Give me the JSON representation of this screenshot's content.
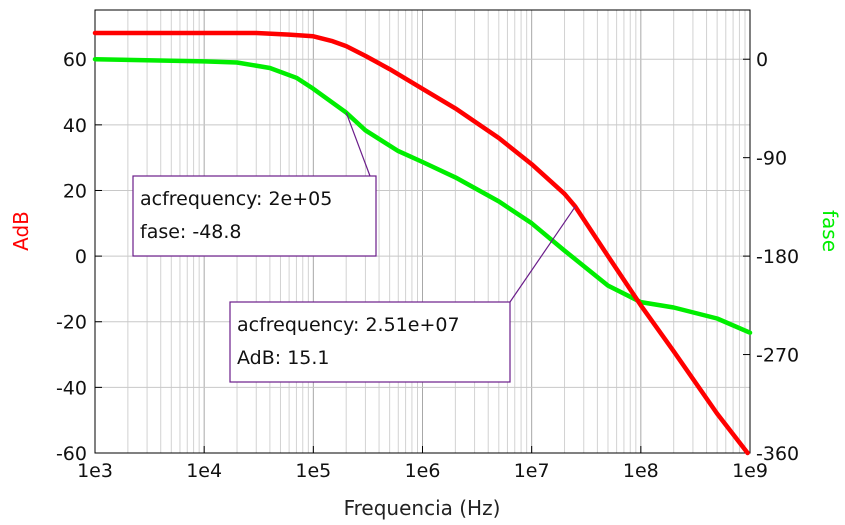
{
  "chart_data": {
    "type": "line",
    "title": "",
    "xlabel": "Frequencia (Hz)",
    "xscale": "log",
    "xlim": [
      1000,
      1000000000
    ],
    "x_ticks": [
      1000,
      10000,
      100000,
      1000000,
      10000000,
      100000000,
      1000000000
    ],
    "x_tick_labels": [
      "1e3",
      "1e4",
      "1e5",
      "1e6",
      "1e7",
      "1e8",
      "1e9"
    ],
    "y_left": {
      "label": "AdB",
      "color": "#ff0000",
      "lim": [
        -60,
        75
      ],
      "ticks": [
        -60,
        -40,
        -20,
        0,
        20,
        40,
        60
      ],
      "tick_labels": [
        "-60",
        "-40",
        "-20",
        "0",
        "20",
        "40",
        "60"
      ]
    },
    "y_right": {
      "label": "fase",
      "color": "#00ee00",
      "lim": [
        -360,
        45
      ],
      "ticks": [
        -360,
        -270,
        -180,
        -90,
        0
      ],
      "tick_labels": [
        "-360",
        "-270",
        "-180",
        "-90",
        "0"
      ]
    },
    "grid": true,
    "series": [
      {
        "name": "AdB",
        "axis": "left",
        "color": "#ff0000",
        "x": [
          1000,
          10000,
          30000,
          60000,
          100000,
          150000,
          200000,
          300000,
          500000,
          1000000,
          2000000,
          5000000,
          10000000,
          20000000,
          25100000,
          50000000,
          100000000,
          200000000,
          500000000,
          950000000
        ],
        "y": [
          68,
          68,
          68,
          67.5,
          67,
          65.5,
          64,
          61,
          57,
          51,
          45,
          36,
          28,
          19,
          15.1,
          0,
          -15,
          -29,
          -48,
          -60
        ]
      },
      {
        "name": "fase",
        "axis": "right",
        "color": "#00ee00",
        "x": [
          1000,
          10000,
          20000,
          40000,
          70000,
          100000,
          200000,
          300000,
          600000,
          1000000,
          2000000,
          5000000,
          10000000,
          20000000,
          50000000,
          100000000,
          200000000,
          500000000,
          1000000000
        ],
        "y": [
          0,
          -2,
          -3,
          -8,
          -17,
          -27,
          -48.8,
          -65,
          -84,
          -94,
          -108,
          -130,
          -150,
          -175,
          -207,
          -222,
          -227,
          -237,
          -250
        ]
      }
    ],
    "annotations": [
      {
        "lines": [
          "acfrequency: 2e+05",
          "fase: -48.8"
        ],
        "point": {
          "x": 200000,
          "y": -48.8,
          "axis": "right"
        }
      },
      {
        "lines": [
          "acfrequency: 2.51e+07",
          "AdB: 15.1"
        ],
        "point": {
          "x": 25100000,
          "y": 15.1,
          "axis": "left"
        }
      }
    ]
  }
}
